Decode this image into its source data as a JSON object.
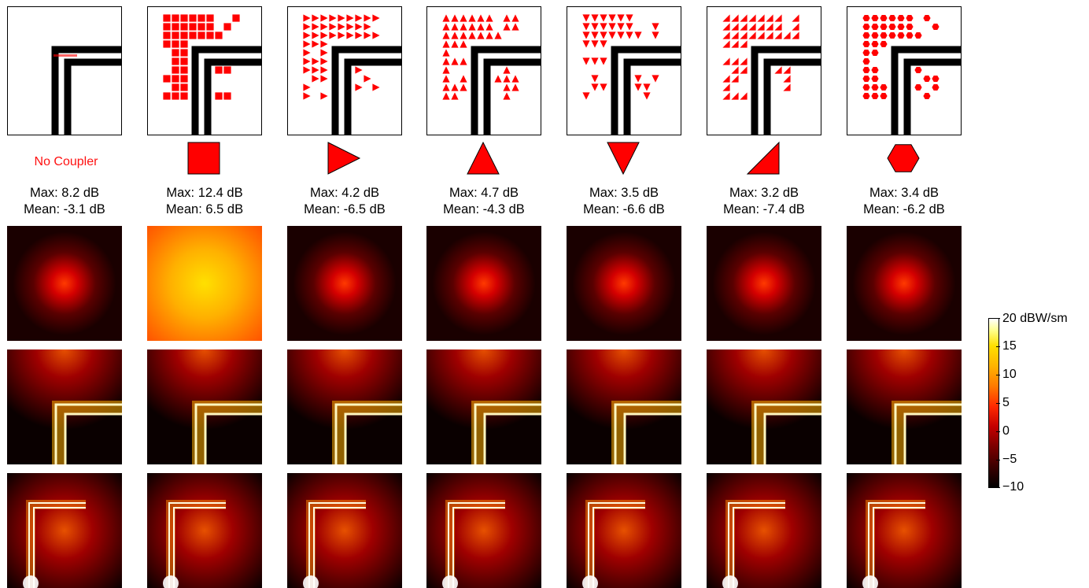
{
  "figure": {
    "columns": [
      {
        "shape": "none",
        "label": "No Coupler",
        "max": "Max: 8.2 dB",
        "mean": "Mean: -3.1 dB"
      },
      {
        "shape": "square",
        "label": "",
        "max": "Max: 12.4 dB",
        "mean": "Mean: 6.5 dB"
      },
      {
        "shape": "triangle-right",
        "label": "",
        "max": "Max: 4.2 dB",
        "mean": "Mean: -6.5 dB"
      },
      {
        "shape": "triangle-up",
        "label": "",
        "max": "Max: 4.7 dB",
        "mean": "Mean: -4.3 dB"
      },
      {
        "shape": "triangle-down",
        "label": "",
        "max": "Max: 3.5 dB",
        "mean": "Mean: -6.6 dB"
      },
      {
        "shape": "right-triangle",
        "label": "",
        "max": "Max: 3.2 dB",
        "mean": "Mean: -7.4 dB"
      },
      {
        "shape": "hexagon",
        "label": "",
        "max": "Max: 3.4 dB",
        "mean": "Mean: -6.2 dB"
      }
    ],
    "colorbar": {
      "unit_label": "20 dBW/sm",
      "ticks": [
        "20 dBW/sm",
        "15",
        "10",
        "5",
        "0",
        "−5",
        "−10"
      ],
      "range": [
        -10,
        20
      ]
    },
    "colors": {
      "shape_fill": "#ff0000",
      "label_red": "#ff1111",
      "line": "#000000"
    }
  }
}
